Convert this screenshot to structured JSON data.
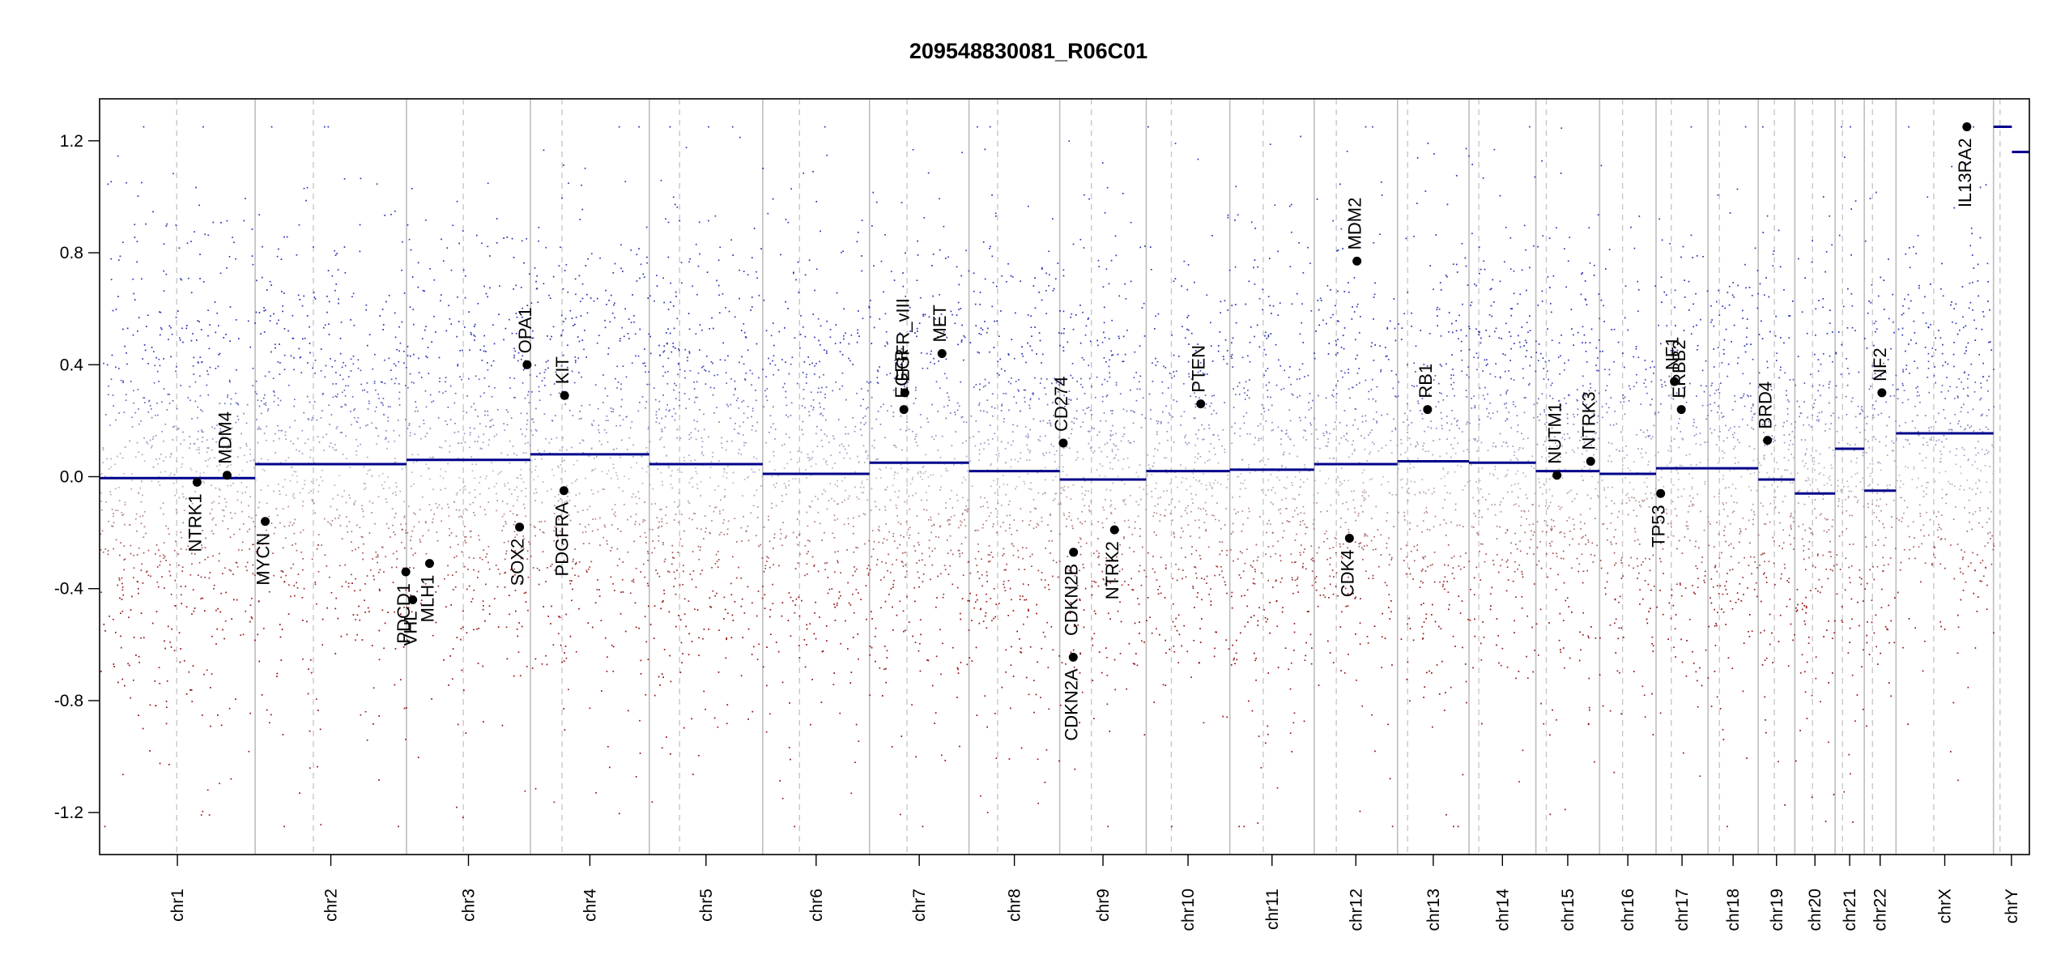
{
  "chart_data": {
    "type": "scatter",
    "title": "209548830081_R06C01",
    "xlabel": "",
    "ylabel": "",
    "ylim": [
      -1.35,
      1.35
    ],
    "yticks": [
      "-1.2",
      "-0.8",
      "-0.4",
      "0.0",
      "0.4",
      "0.8",
      "1.2"
    ],
    "grid": false,
    "legend": "none",
    "colors": {
      "gain": "#2f3fb0",
      "loss": "#a01818",
      "neutral": "#b9b9b9",
      "segment": "#00008b",
      "point": "#000000"
    },
    "chromosomes": [
      {
        "name": "chr1",
        "start": 0,
        "end": 248.9,
        "centromere": 123.4
      },
      {
        "name": "chr2",
        "start": 248.9,
        "end": 491.1,
        "centromere": 342.0
      },
      {
        "name": "chr3",
        "start": 491.1,
        "end": 689.4,
        "centromere": 582.0
      },
      {
        "name": "chr4",
        "start": 689.4,
        "end": 879.6,
        "centromere": 740.0
      },
      {
        "name": "chr5",
        "start": 879.6,
        "end": 1061.1,
        "centromere": 928.0
      },
      {
        "name": "chr6",
        "start": 1061.1,
        "end": 1232.0,
        "centromere": 1120.0
      },
      {
        "name": "chr7",
        "start": 1232.0,
        "end": 1391.2,
        "centromere": 1292.0
      },
      {
        "name": "chr8",
        "start": 1391.2,
        "end": 1536.4,
        "centromere": 1437.0
      },
      {
        "name": "chr9",
        "start": 1536.4,
        "end": 1674.8,
        "centromere": 1587.0
      },
      {
        "name": "chr10",
        "start": 1674.8,
        "end": 1808.6,
        "centromere": 1715.0
      },
      {
        "name": "chr11",
        "start": 1808.6,
        "end": 1943.6,
        "centromere": 1862.0
      },
      {
        "name": "chr12",
        "start": 1943.6,
        "end": 2076.9,
        "centromere": 1979.0
      },
      {
        "name": "chr13",
        "start": 2076.9,
        "end": 2191.3,
        "centromere": 2093.0
      },
      {
        "name": "chr14",
        "start": 2191.3,
        "end": 2298.3,
        "centromere": 2207.0
      },
      {
        "name": "chr15",
        "start": 2298.3,
        "end": 2400.3,
        "centromere": 2315.0
      },
      {
        "name": "chr16",
        "start": 2400.3,
        "end": 2490.6,
        "centromere": 2437.0
      },
      {
        "name": "chr17",
        "start": 2490.6,
        "end": 2573.8,
        "centromere": 2515.0
      },
      {
        "name": "chr18",
        "start": 2573.8,
        "end": 2654.1,
        "centromere": 2592.0
      },
      {
        "name": "chr19",
        "start": 2654.1,
        "end": 2712.7,
        "centromere": 2680.0
      },
      {
        "name": "chr20",
        "start": 2712.7,
        "end": 2777.1,
        "centromere": 2741.0
      },
      {
        "name": "chr21",
        "start": 2777.1,
        "end": 2823.8,
        "centromere": 2789.0
      },
      {
        "name": "chr22",
        "start": 2823.8,
        "end": 2874.6,
        "centromere": 2837.0
      },
      {
        "name": "chrX",
        "start": 2874.6,
        "end": 3030.6,
        "centromere": 2935.0
      },
      {
        "name": "chrY",
        "start": 3030.6,
        "end": 3088.0,
        "centromere": 3041.0
      }
    ],
    "segments": [
      {
        "chr": "chr1",
        "start": 0,
        "end": 248.9,
        "value": -0.005
      },
      {
        "chr": "chr2",
        "start": 248.9,
        "end": 491.1,
        "value": 0.045
      },
      {
        "chr": "chr3",
        "start": 491.1,
        "end": 689.4,
        "value": 0.06
      },
      {
        "chr": "chr4",
        "start": 689.4,
        "end": 879.6,
        "value": 0.08
      },
      {
        "chr": "chr5",
        "start": 879.6,
        "end": 1061.1,
        "value": 0.045
      },
      {
        "chr": "chr6",
        "start": 1061.1,
        "end": 1232.0,
        "value": 0.01
      },
      {
        "chr": "chr7",
        "start": 1232.0,
        "end": 1391.2,
        "value": 0.05
      },
      {
        "chr": "chr8",
        "start": 1391.2,
        "end": 1536.4,
        "value": 0.02
      },
      {
        "chr": "chr9",
        "start": 1536.4,
        "end": 1674.8,
        "value": -0.01
      },
      {
        "chr": "chr10",
        "start": 1674.8,
        "end": 1808.6,
        "value": 0.02
      },
      {
        "chr": "chr11",
        "start": 1808.6,
        "end": 1943.6,
        "value": 0.025
      },
      {
        "chr": "chr12",
        "start": 1943.6,
        "end": 2076.9,
        "value": 0.045
      },
      {
        "chr": "chr13",
        "start": 2076.9,
        "end": 2191.3,
        "value": 0.055
      },
      {
        "chr": "chr14",
        "start": 2191.3,
        "end": 2298.3,
        "value": 0.05
      },
      {
        "chr": "chr15",
        "start": 2298.3,
        "end": 2400.3,
        "value": 0.02
      },
      {
        "chr": "chr16",
        "start": 2400.3,
        "end": 2490.6,
        "value": 0.01
      },
      {
        "chr": "chr17",
        "start": 2490.6,
        "end": 2573.8,
        "value": 0.03
      },
      {
        "chr": "chr18",
        "start": 2573.8,
        "end": 2654.1,
        "value": 0.03
      },
      {
        "chr": "chr19",
        "start": 2654.1,
        "end": 2712.7,
        "value": -0.01
      },
      {
        "chr": "chr20",
        "start": 2712.7,
        "end": 2777.1,
        "value": -0.06
      },
      {
        "chr": "chr21",
        "start": 2777.1,
        "end": 2823.8,
        "value": 0.1
      },
      {
        "chr": "chr22",
        "start": 2823.8,
        "end": 2874.6,
        "value": -0.05
      },
      {
        "chr": "chrX",
        "start": 2874.6,
        "end": 3030.6,
        "value": 0.155
      },
      {
        "chr": "chrY",
        "start": 3030.6,
        "end": 3060.0,
        "value": 1.25
      },
      {
        "chr": "chrY",
        "start": 3060.0,
        "end": 3088.0,
        "value": 1.16
      }
    ],
    "genes": [
      {
        "name": "NTRK1",
        "pos": 156.0,
        "value": -0.02,
        "label": "below"
      },
      {
        "name": "MDM4",
        "pos": 204.0,
        "value": 0.005,
        "label": "above"
      },
      {
        "name": "MYCN",
        "pos": 265.0,
        "value": -0.16,
        "label": "below"
      },
      {
        "name": "PDCD1",
        "pos": 490.0,
        "value": -0.34,
        "label": "below"
      },
      {
        "name": "VHL",
        "pos": 501.0,
        "value": -0.44,
        "label": "below"
      },
      {
        "name": "MLH1",
        "pos": 528.0,
        "value": -0.31,
        "label": "below"
      },
      {
        "name": "SOX2",
        "pos": 672.0,
        "value": -0.18,
        "label": "below"
      },
      {
        "name": "OPA1",
        "pos": 684.0,
        "value": 0.4,
        "label": "above"
      },
      {
        "name": "KIT",
        "pos": 744.0,
        "value": 0.29,
        "label": "above"
      },
      {
        "name": "PDGFRA",
        "pos": 743.0,
        "value": -0.05,
        "label": "below"
      },
      {
        "name": "EGFR",
        "pos": 1287.0,
        "value": 0.24,
        "label": "above"
      },
      {
        "name": "EGFR_vIII",
        "pos": 1288.5,
        "value": 0.3,
        "label": "above"
      },
      {
        "name": "MET",
        "pos": 1348.0,
        "value": 0.44,
        "label": "above"
      },
      {
        "name": "CD274",
        "pos": 1542.0,
        "value": 0.12,
        "label": "above"
      },
      {
        "name": "CDKN2A",
        "pos": 1558.0,
        "value": -0.645,
        "label": "below"
      },
      {
        "name": "CDKN2B",
        "pos": 1558.5,
        "value": -0.27,
        "label": "below"
      },
      {
        "name": "NTRK2",
        "pos": 1624.0,
        "value": -0.19,
        "label": "below"
      },
      {
        "name": "PTEN",
        "pos": 1762.0,
        "value": 0.26,
        "label": "above"
      },
      {
        "name": "CDK4",
        "pos": 2000.0,
        "value": -0.22,
        "label": "below"
      },
      {
        "name": "MDM2",
        "pos": 2012.0,
        "value": 0.77,
        "label": "above"
      },
      {
        "name": "RB1",
        "pos": 2125.0,
        "value": 0.24,
        "label": "above"
      },
      {
        "name": "NUTM1",
        "pos": 2332.0,
        "value": 0.005,
        "label": "above"
      },
      {
        "name": "NTRK3",
        "pos": 2386.0,
        "value": 0.055,
        "label": "above"
      },
      {
        "name": "TP53",
        "pos": 2498.0,
        "value": -0.06,
        "label": "below"
      },
      {
        "name": "NF1",
        "pos": 2520.0,
        "value": 0.34,
        "label": "above"
      },
      {
        "name": "ERBB2",
        "pos": 2531.0,
        "value": 0.24,
        "label": "above"
      },
      {
        "name": "BRD4",
        "pos": 2669.0,
        "value": 0.13,
        "label": "above"
      },
      {
        "name": "NF2",
        "pos": 2852.0,
        "value": 0.3,
        "label": "above"
      },
      {
        "name": "IL13RA2",
        "pos": 2988.0,
        "value": 1.25,
        "label": "below"
      }
    ]
  }
}
